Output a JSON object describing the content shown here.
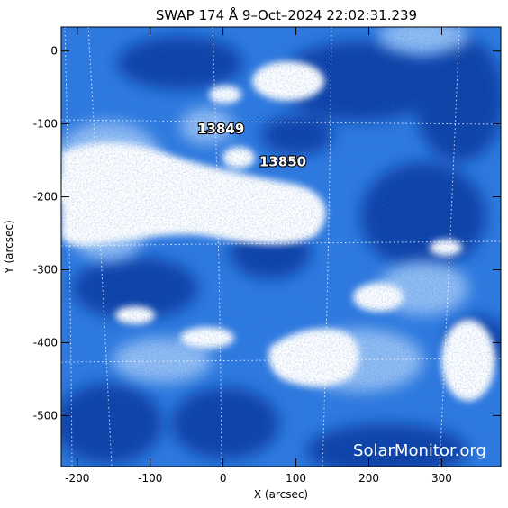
{
  "title": "SWAP 174 Å  9–Oct–2024 22:02:31.239",
  "x_axis_label": "X (arcsec)",
  "y_axis_label": "Y (arcsec)",
  "x_ticks": [
    "-200",
    "-100",
    "0",
    "100",
    "200",
    "300"
  ],
  "y_ticks": [
    "0",
    "-100",
    "-200",
    "-300",
    "-400",
    "-500"
  ],
  "x_tick_values": [
    -200,
    -100,
    0,
    100,
    200,
    300
  ],
  "y_tick_values": [
    0,
    -100,
    -200,
    -300,
    -400,
    -500
  ],
  "x_range": [
    -222,
    381
  ],
  "y_range": [
    -570,
    33
  ],
  "regions": [
    {
      "number": "13849",
      "x": -3,
      "y": -113
    },
    {
      "number": "13850",
      "x": 82,
      "y": -158
    }
  ],
  "watermark": "SolarMonitor.org",
  "colors": {
    "background": "#ffffff",
    "image_dark": "#0a3fa5",
    "image_mid": "#2f7ae0",
    "image_light": "#9cc4f6",
    "image_bright": "#ffffff",
    "grid": "#ffffff"
  },
  "grid": true
}
